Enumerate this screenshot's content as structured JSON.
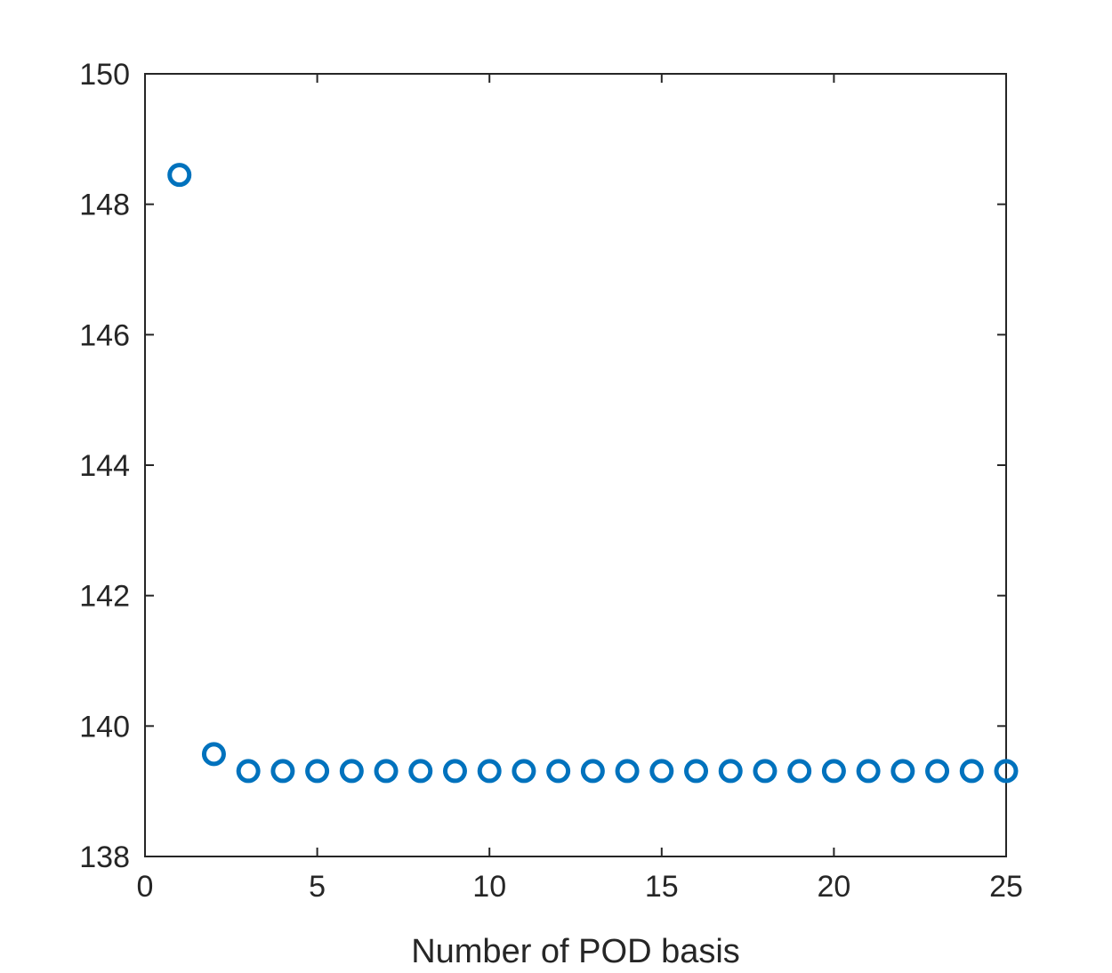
{
  "chart_data": {
    "type": "scatter",
    "title": "",
    "xlabel": "Number of POD basis",
    "ylabel": "",
    "xlim": [
      0,
      25
    ],
    "ylim": [
      138,
      150
    ],
    "xticks": [
      0,
      5,
      10,
      15,
      20,
      25
    ],
    "yticks": [
      138,
      140,
      142,
      144,
      146,
      148,
      150
    ],
    "grid": false,
    "marker": "open-circle",
    "series": [
      {
        "color": "#0072BD",
        "x": [
          1,
          2,
          3,
          4,
          5,
          6,
          7,
          8,
          9,
          10,
          11,
          12,
          13,
          14,
          15,
          16,
          17,
          18,
          19,
          20,
          21,
          22,
          23,
          24,
          25
        ],
        "y": [
          148.45,
          139.57,
          139.31,
          139.31,
          139.31,
          139.31,
          139.31,
          139.31,
          139.31,
          139.31,
          139.31,
          139.31,
          139.31,
          139.31,
          139.31,
          139.31,
          139.31,
          139.31,
          139.31,
          139.31,
          139.31,
          139.31,
          139.31,
          139.31,
          139.31
        ]
      }
    ]
  }
}
